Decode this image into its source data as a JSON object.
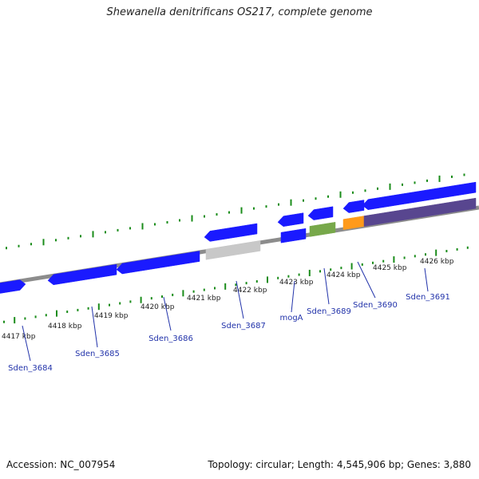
{
  "title": "Shewanella denitrificans OS217, complete genome",
  "footer": {
    "accession": "Accession: NC_007954",
    "summary": "Topology: circular; Length: 4,545,906 bp; Genes: 3,880"
  },
  "colors": {
    "background": "#ffffff",
    "backbone": "#8c8c8c",
    "tick": "#1a8c1a",
    "gene_blue": "#1a1aff",
    "gene_grey": "#c8c8c8",
    "gene_green": "#77a84a",
    "gene_orange": "#ff9a1a",
    "gene_purple": "#58468f",
    "label_blue": "#2233aa"
  },
  "kbp_labels": [
    "4417 kbp",
    "4418 kbp",
    "4419 kbp",
    "4420 kbp",
    "4421 kbp",
    "4422 kbp",
    "4423 kbp",
    "4424 kbp",
    "4425 kbp",
    "4426 kbp"
  ],
  "gene_labels": [
    "Sden_3684",
    "Sden_3685",
    "Sden_3686",
    "Sden_3687",
    "mogA",
    "Sden_3689",
    "Sden_3690",
    "Sden_3691"
  ]
}
